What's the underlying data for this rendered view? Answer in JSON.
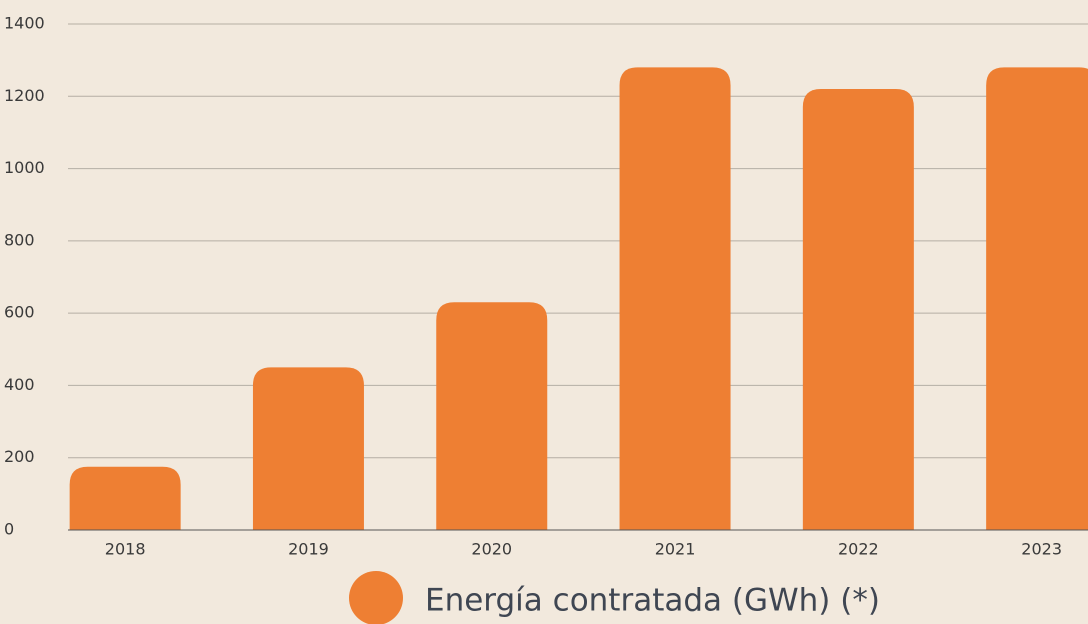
{
  "chart_data": {
    "type": "bar",
    "categories": [
      "2018",
      "2019",
      "2020",
      "2021",
      "2022",
      "2023"
    ],
    "series": [
      {
        "name": "Energía contratada (GWh) (*)",
        "color": "#ee7f33",
        "values": [
          175,
          450,
          630,
          1280,
          1220,
          1280
        ]
      }
    ],
    "ylim": [
      0,
      1400
    ],
    "yticks": [
      0,
      200,
      400,
      600,
      800,
      1000,
      1200,
      1400
    ],
    "grid": true
  }
}
